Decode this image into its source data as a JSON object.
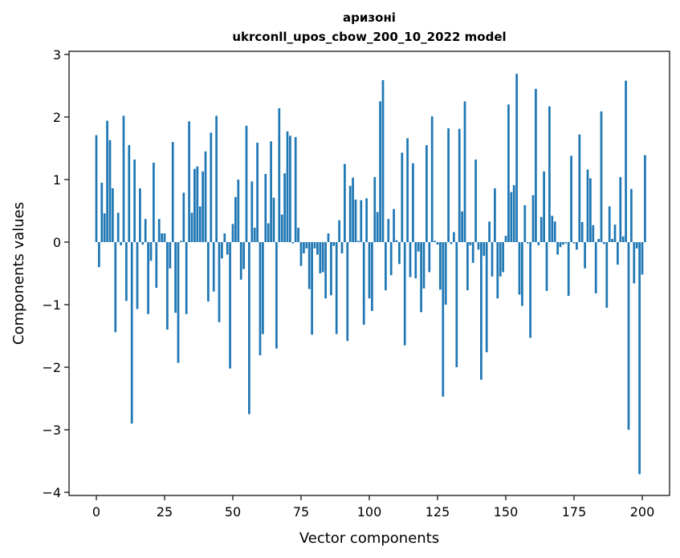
{
  "chart_data": {
    "type": "bar",
    "title_line1": "аризоні",
    "title_line2": "ukrconll_upos_cbow_200_10_2022 model",
    "xlabel": "Vector components",
    "ylabel": "Components values",
    "xlim": [
      -10,
      210
    ],
    "ylim": [
      -4.05,
      3.05
    ],
    "xticks": [
      0,
      25,
      50,
      75,
      100,
      125,
      150,
      175,
      200
    ],
    "yticks": [
      -4,
      -3,
      -2,
      -1,
      0,
      1,
      2,
      3
    ],
    "ytick_labels": [
      "−4",
      "−3",
      "−2",
      "−1",
      "0",
      "1",
      "2",
      "3"
    ],
    "color": "#1f77b4",
    "grid": false,
    "values": [
      1.71,
      -0.4,
      0.95,
      0.46,
      1.94,
      1.63,
      0.86,
      -1.44,
      0.47,
      -0.05,
      2.02,
      -0.94,
      1.55,
      -2.9,
      1.32,
      -1.07,
      0.86,
      -0.04,
      0.37,
      -1.15,
      -0.3,
      1.27,
      -0.73,
      0.37,
      0.14,
      0.14,
      -1.4,
      -0.42,
      1.6,
      -1.13,
      -1.93,
      0.02,
      0.79,
      -1.15,
      1.93,
      0.47,
      1.17,
      1.21,
      0.57,
      1.13,
      1.45,
      -0.95,
      1.75,
      -0.79,
      2.02,
      -1.28,
      -0.26,
      0.14,
      -0.2,
      -2.02,
      0.29,
      0.72,
      1.0,
      -0.6,
      -0.43,
      1.86,
      -2.75,
      0.97,
      0.23,
      1.59,
      -1.81,
      -1.47,
      1.09,
      0.3,
      1.61,
      0.71,
      -1.7,
      2.14,
      0.44,
      1.1,
      1.77,
      1.7,
      -0.02,
      1.68,
      0.23,
      -0.38,
      -0.18,
      -0.1,
      -0.75,
      -1.48,
      -0.1,
      -0.2,
      -0.5,
      -0.48,
      -0.9,
      0.14,
      -0.85,
      -0.06,
      -1.47,
      0.35,
      -0.18,
      1.25,
      -1.58,
      0.9,
      1.03,
      0.68,
      0.02,
      0.67,
      -1.32,
      0.7,
      -0.9,
      -1.1,
      1.04,
      0.48,
      2.25,
      2.59,
      -0.77,
      0.37,
      -0.53,
      0.53,
      0.03,
      -0.35,
      1.43,
      -1.65,
      1.66,
      -0.56,
      1.26,
      -0.58,
      -0.15,
      -1.12,
      -0.74,
      1.55,
      -0.48,
      2.01,
      0.02,
      -0.04,
      -0.76,
      -2.47,
      -1.0,
      1.82,
      -0.03,
      0.16,
      -2.0,
      1.81,
      0.49,
      2.25,
      -0.77,
      -0.05,
      -0.33,
      1.32,
      -0.12,
      -2.2,
      -0.22,
      -1.76,
      0.33,
      -0.55,
      0.86,
      -0.9,
      -0.55,
      -0.48,
      0.1,
      2.2,
      0.8,
      0.91,
      2.69,
      -0.84,
      -1.02,
      0.59,
      -0.02,
      -1.53,
      0.75,
      2.45,
      -0.05,
      0.4,
      1.13,
      -0.78,
      2.17,
      0.42,
      0.33,
      -0.2,
      -0.08,
      -0.04,
      -0.02,
      -0.86,
      1.38,
      -0.02,
      -0.12,
      1.72,
      0.32,
      -0.42,
      1.16,
      1.02,
      0.27,
      -0.82,
      0.05,
      2.09,
      -0.03,
      -1.05,
      0.57,
      0.05,
      0.28,
      -0.36,
      1.04,
      0.09,
      2.58,
      -3.0,
      0.85,
      -0.66,
      -0.1,
      -3.71,
      -0.52,
      1.39
    ]
  }
}
